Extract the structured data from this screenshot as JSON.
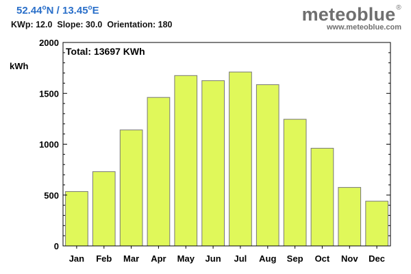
{
  "header": {
    "lat": "52.44",
    "lat_dir": "N /",
    "lon": "13.45",
    "lon_dir": "E",
    "degree": "o",
    "params": "KWp: 12.0  Slope: 30.0  Orientation: 180"
  },
  "brand": {
    "name": "meteoblue",
    "registered": "®",
    "url": "www.meteoblue.com"
  },
  "colors": {
    "bar_fill": "#e0f85a",
    "bar_stroke": "#777777",
    "axis": "#000000",
    "coords_text": "#2a6fc9"
  },
  "chart_data": {
    "type": "bar",
    "title": "Total: 13697 KWh",
    "ylabel": "kWh",
    "xlabel": "",
    "ylim": [
      0,
      2000
    ],
    "yticks": [
      0,
      500,
      1000,
      1500,
      2000
    ],
    "grid": false,
    "categories": [
      "Jan",
      "Feb",
      "Mar",
      "Apr",
      "May",
      "Jun",
      "Jul",
      "Aug",
      "Sep",
      "Oct",
      "Nov",
      "Dec"
    ],
    "values": [
      535,
      730,
      1140,
      1460,
      1675,
      1625,
      1710,
      1585,
      1245,
      960,
      575,
      440
    ]
  }
}
